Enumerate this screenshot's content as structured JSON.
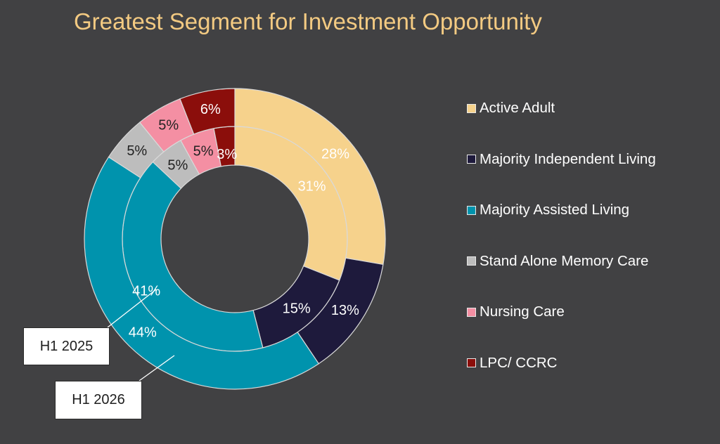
{
  "chart_data": {
    "type": "donut",
    "title": "Greatest Segment for Investment Opportunity",
    "categories": [
      "Active Adult",
      "Majority Independent Living",
      "Majority Assisted Living",
      "Stand Alone Memory Care",
      "Nursing Care",
      "LPC/ CCRC"
    ],
    "colors": [
      "#f6d28c",
      "#1e1a3c",
      "#0093ad",
      "#bdbdbd",
      "#f48fa3",
      "#8b0e0b"
    ],
    "label_colors": [
      "#ffffff",
      "#ffffff",
      "#ffffff",
      "#222222",
      "#222222",
      "#ffffff"
    ],
    "series": [
      {
        "name": "H1 2025",
        "ring": "inner",
        "values": [
          31,
          15,
          41,
          5,
          5,
          3
        ],
        "labels": [
          "31%",
          "15%",
          "41%",
          "5%",
          "5%",
          "3%"
        ]
      },
      {
        "name": "H1 2026",
        "ring": "outer",
        "values": [
          28,
          13,
          44,
          5,
          5,
          6
        ],
        "labels": [
          "28%",
          "13%",
          "44%",
          "5%",
          "5%",
          "6%"
        ]
      }
    ],
    "legend_position": "right"
  }
}
